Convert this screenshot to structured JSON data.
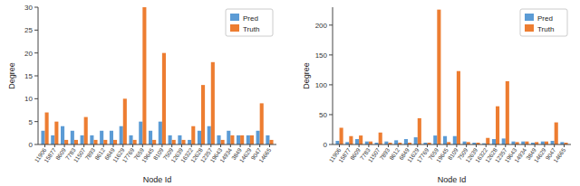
{
  "chart_data": [
    {
      "type": "bar",
      "xlabel": "Node Id",
      "ylabel": "Degree",
      "categories": [
        "11906",
        "15877",
        "8609",
        "7783",
        "11507",
        "7893",
        "8612",
        "6849",
        "11629",
        "17769",
        "7659",
        "19645",
        "8109",
        "7509",
        "12639",
        "16322",
        "12628",
        "12357",
        "19643",
        "14934",
        "3849",
        "14629",
        "9047",
        "14665"
      ],
      "series": [
        {
          "name": "Pred",
          "color": "#5B9BD5",
          "values": [
            3,
            2,
            4,
            3,
            2,
            2,
            3,
            3,
            4,
            2,
            5,
            3,
            5,
            2,
            2,
            1,
            3,
            4,
            2,
            3,
            2,
            2,
            3,
            2
          ]
        },
        {
          "name": "Truth",
          "color": "#ED7D31",
          "values": [
            7,
            5,
            1,
            1,
            6,
            1,
            1,
            1,
            10,
            1,
            30,
            1,
            20,
            1,
            1,
            4,
            13,
            18,
            1,
            2,
            2,
            2,
            9,
            1
          ]
        }
      ],
      "ylim": [
        0,
        30
      ],
      "yticks": [
        0,
        5,
        10,
        15,
        20,
        25,
        30
      ],
      "legend": "upper right"
    },
    {
      "type": "bar",
      "xlabel": "Node Id",
      "ylabel": "Degree",
      "categories": [
        "11906",
        "15877",
        "8609",
        "7783",
        "11507",
        "7893",
        "8612",
        "6849",
        "11629",
        "17769",
        "7659",
        "19645",
        "8109",
        "7509",
        "12639",
        "16322",
        "12628",
        "12357",
        "19643",
        "14934",
        "3849",
        "14629",
        "9047",
        "14665"
      ],
      "series": [
        {
          "name": "Pred",
          "color": "#5B9BD5",
          "values": [
            6,
            4,
            9,
            5,
            3,
            5,
            7,
            9,
            12,
            3,
            15,
            14,
            14,
            5,
            3,
            2,
            9,
            10,
            5,
            5,
            3,
            5,
            6,
            4
          ]
        },
        {
          "name": "Truth",
          "color": "#ED7D31",
          "values": [
            28,
            14,
            15,
            5,
            20,
            3,
            3,
            3,
            44,
            3,
            226,
            4,
            123,
            4,
            3,
            11,
            64,
            106,
            4,
            5,
            4,
            5,
            37,
            3
          ]
        }
      ],
      "ylim": [
        0,
        230
      ],
      "yticks": [
        0,
        50,
        100,
        150,
        200
      ],
      "legend": "upper right"
    }
  ]
}
